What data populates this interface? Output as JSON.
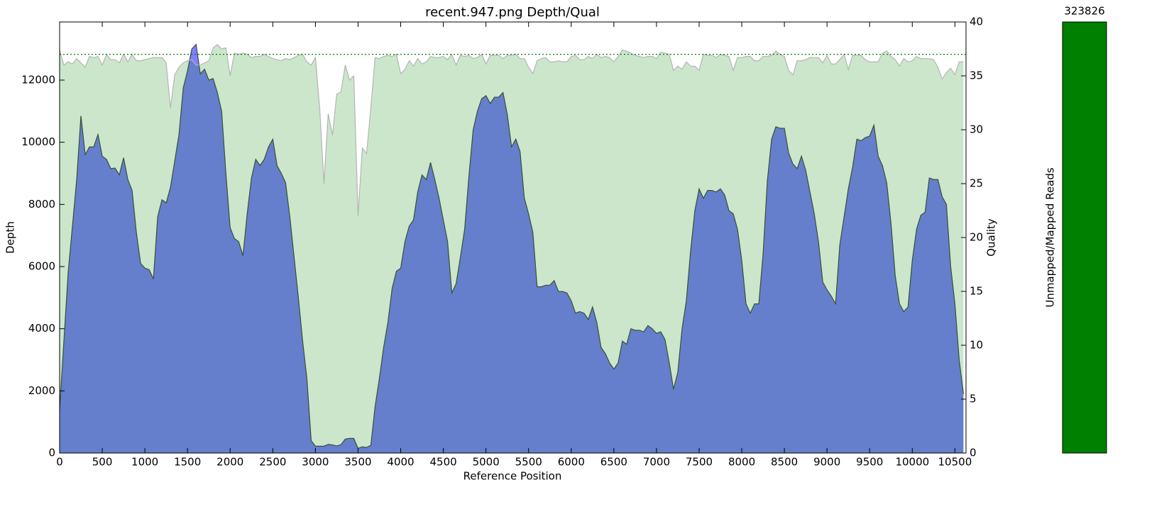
{
  "chart_data": [
    {
      "type": "area",
      "title": "recent.947.png Depth/Qual",
      "xlabel": "Reference Position",
      "ylabel": "Depth",
      "y2label": "Quality",
      "x": [
        0,
        50,
        100,
        150,
        200,
        250,
        300,
        350,
        400,
        450,
        500,
        550,
        600,
        650,
        700,
        750,
        800,
        850,
        900,
        950,
        1000,
        1050,
        1100,
        1150,
        1200,
        1250,
        1300,
        1350,
        1400,
        1450,
        1500,
        1550,
        1600,
        1650,
        1700,
        1750,
        1800,
        1850,
        1900,
        1950,
        2000,
        2050,
        2100,
        2150,
        2200,
        2250,
        2300,
        2350,
        2400,
        2450,
        2500,
        2550,
        2600,
        2650,
        2700,
        2750,
        2800,
        2850,
        2900,
        2950,
        3000,
        3050,
        3100,
        3150,
        3200,
        3250,
        3300,
        3350,
        3400,
        3450,
        3500,
        3550,
        3600,
        3650,
        3700,
        3750,
        3800,
        3850,
        3900,
        3950,
        4000,
        4050,
        4100,
        4150,
        4200,
        4250,
        4300,
        4350,
        4400,
        4450,
        4500,
        4550,
        4600,
        4650,
        4700,
        4750,
        4800,
        4850,
        4900,
        4950,
        5000,
        5050,
        5100,
        5150,
        5200,
        5250,
        5300,
        5350,
        5400,
        5450,
        5500,
        5550,
        5600,
        5650,
        5700,
        5750,
        5800,
        5850,
        5900,
        5950,
        6000,
        6050,
        6100,
        6150,
        6200,
        6250,
        6300,
        6350,
        6400,
        6450,
        6500,
        6550,
        6600,
        6650,
        6700,
        6750,
        6800,
        6850,
        6900,
        6950,
        7000,
        7050,
        7100,
        7150,
        7200,
        7250,
        7300,
        7350,
        7400,
        7450,
        7500,
        7550,
        7600,
        7650,
        7700,
        7750,
        7800,
        7850,
        7900,
        7950,
        8000,
        8050,
        8100,
        8150,
        8200,
        8250,
        8300,
        8350,
        8400,
        8450,
        8500,
        8550,
        8600,
        8650,
        8700,
        8750,
        8800,
        8850,
        8900,
        8950,
        9000,
        9050,
        9100,
        9150,
        9200,
        9250,
        9300,
        9350,
        9400,
        9450,
        9500,
        9550,
        9600,
        9650,
        9700,
        9750,
        9800,
        9850,
        9900,
        9950,
        10000,
        10050,
        10100,
        10150,
        10200,
        10250,
        10300,
        10350,
        10400,
        10450,
        10500,
        10550,
        10600
      ],
      "series": [
        {
          "axis": "y",
          "color": "#0000ff",
          "opacity": 0.5,
          "edge": "#444444",
          "values": [
            1400,
            3600,
            5800,
            7300,
            8800,
            10850,
            9600,
            9850,
            9850,
            10250,
            9550,
            9450,
            9150,
            9170,
            8950,
            9500,
            8800,
            8450,
            7100,
            6100,
            5950,
            5900,
            5600,
            7600,
            8150,
            8050,
            8550,
            9400,
            10250,
            11750,
            12300,
            13000,
            13150,
            12200,
            12350,
            12000,
            12050,
            11600,
            11000,
            9000,
            7250,
            6900,
            6800,
            6350,
            7700,
            8850,
            9450,
            9250,
            9450,
            9850,
            10100,
            9250,
            9000,
            8700,
            7600,
            6300,
            5000,
            3600,
            2400,
            400,
            220,
            220,
            220,
            280,
            260,
            230,
            270,
            450,
            470,
            470,
            150,
            200,
            180,
            250,
            1500,
            2400,
            3400,
            4200,
            5300,
            5850,
            5950,
            6800,
            7300,
            7500,
            8400,
            8950,
            8800,
            9350,
            8800,
            8200,
            7500,
            6800,
            5150,
            5450,
            6300,
            7200,
            8900,
            10400,
            11000,
            11400,
            11500,
            11250,
            11450,
            11450,
            11600,
            10900,
            9850,
            10100,
            9700,
            8200,
            7700,
            7100,
            5350,
            5350,
            5400,
            5400,
            5550,
            5200,
            5200,
            5150,
            4900,
            4500,
            4550,
            4500,
            4300,
            4700,
            4200,
            3400,
            3200,
            2900,
            2700,
            2900,
            3600,
            3500,
            4000,
            3950,
            3950,
            3900,
            4100,
            4000,
            3850,
            3900,
            3650,
            2900,
            2050,
            2600,
            4000,
            4900,
            6500,
            7800,
            8500,
            8200,
            8450,
            8450,
            8400,
            8500,
            8300,
            7800,
            7700,
            7200,
            6200,
            4800,
            4500,
            4800,
            4800,
            6400,
            8750,
            10100,
            10500,
            10450,
            10450,
            9650,
            9300,
            9150,
            9550,
            9100,
            8400,
            7700,
            6800,
            5500,
            5250,
            5050,
            4800,
            6700,
            7600,
            8500,
            9200,
            10100,
            10050,
            10150,
            10200,
            10550,
            9550,
            9250,
            8700,
            7400,
            5700,
            4800,
            4550,
            4700,
            6200,
            7200,
            7650,
            7750,
            8850,
            8800,
            8800,
            8250,
            8000,
            6000,
            4800,
            3000,
            1900
          ]
        },
        {
          "axis": "y2",
          "color": "#008000",
          "opacity": 0.2,
          "edge": "#b4b4b4",
          "values": [
            37.4,
            36,
            36.3,
            36.1,
            36.6,
            36.2,
            35.8,
            36.8,
            36.7,
            36.8,
            36,
            37,
            36.5,
            36.5,
            36.2,
            37,
            36.3,
            37,
            36.4,
            36.4,
            36.5,
            36.6,
            36.7,
            36.7,
            36.7,
            36.2,
            32,
            35.1,
            35.8,
            36.2,
            36.4,
            36.5,
            36,
            36,
            36.2,
            36.4,
            37.6,
            37.9,
            37.5,
            37.6,
            35,
            37.1,
            37,
            37.1,
            37,
            36.7,
            36.8,
            36.8,
            37,
            36.8,
            36.6,
            36.5,
            36.4,
            36.6,
            36.5,
            36.7,
            36.9,
            37,
            36.3,
            36,
            36.7,
            32,
            25,
            31.5,
            29.5,
            33.3,
            33.5,
            36,
            34.6,
            35,
            22,
            28.3,
            27.8,
            32,
            36.7,
            36.6,
            36.8,
            36.9,
            36.8,
            37,
            35.2,
            35.6,
            36.4,
            35.9,
            36.6,
            36.1,
            36.3,
            36.8,
            36.7,
            36.7,
            36.8,
            36.5,
            37,
            36,
            36.9,
            36.8,
            36.9,
            36.6,
            36.7,
            37,
            36.1,
            36.9,
            36.9,
            36.9,
            36.6,
            36.9,
            36.9,
            37,
            36.6,
            36.6,
            35.8,
            35.2,
            36.4,
            36.6,
            36.7,
            36.3,
            36.3,
            36.4,
            36.3,
            36.3,
            36.8,
            36.9,
            36.5,
            36.5,
            36.8,
            36.6,
            37,
            36.7,
            36.8,
            36.7,
            36.3,
            36.8,
            37.4,
            37.3,
            37.1,
            36.9,
            36.8,
            36.7,
            36.8,
            36.8,
            36.6,
            37.2,
            37.1,
            37,
            35.5,
            35.9,
            35.6,
            36.3,
            35.9,
            35.9,
            35.5,
            37,
            36.9,
            36.9,
            36.7,
            37,
            36.9,
            36.8,
            35.5,
            36.7,
            36.7,
            36.8,
            36.8,
            36.4,
            36.4,
            36.8,
            36.8,
            36.9,
            37.3,
            37,
            36.8,
            35.5,
            35.1,
            36.4,
            36.4,
            36.5,
            36.7,
            36.7,
            36.7,
            36.2,
            36.9,
            36.1,
            36.1,
            36.5,
            37,
            35.6,
            36.9,
            36.9,
            36.9,
            36.5,
            36.3,
            36.3,
            36.3,
            37.1,
            37.3,
            36.8,
            36.5,
            35.9,
            36.6,
            36.3,
            36.4,
            36.8,
            36.6,
            36.6,
            36.6,
            36.5,
            35.8,
            34.7,
            35.3,
            35.7,
            35.1,
            36.3,
            36.3
          ]
        }
      ],
      "hline": {
        "axis": "y2",
        "value": 37,
        "color": "#008000"
      },
      "xlim": [
        0,
        10630
      ],
      "ylim": [
        0,
        13870
      ],
      "y2lim": [
        0,
        40
      ],
      "xticks": [
        0,
        500,
        1000,
        1500,
        2000,
        2500,
        3000,
        3500,
        4000,
        4500,
        5000,
        5500,
        6000,
        6500,
        7000,
        7500,
        8000,
        8500,
        9000,
        9500,
        10000,
        10500
      ],
      "yticks": [
        0,
        2000,
        4000,
        6000,
        8000,
        10000,
        12000
      ],
      "y2ticks": [
        0,
        5,
        10,
        15,
        20,
        25,
        30,
        35,
        40
      ]
    },
    {
      "type": "stacked_bar",
      "ylabel": "Unmapped/Mapped Reads",
      "values": [
        0,
        323826
      ],
      "colors": [
        "#ff0000",
        "#008000"
      ],
      "label_colors": [
        "#ffffff",
        "#000000"
      ]
    }
  ]
}
